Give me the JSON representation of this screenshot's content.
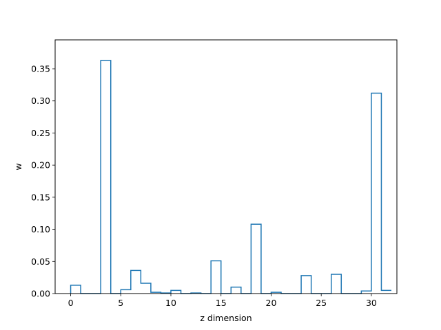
{
  "chart_data": {
    "type": "line",
    "style": "step-histogram",
    "xlabel": "z dimension",
    "ylabel": "w",
    "xlim": [
      -1.55,
      32.55
    ],
    "ylim": [
      0,
      0.395
    ],
    "xticks": [
      0,
      5,
      10,
      15,
      20,
      25,
      30
    ],
    "yticks": [
      0.0,
      0.05,
      0.1,
      0.15,
      0.2,
      0.25,
      0.3,
      0.35
    ],
    "ytick_labels": [
      "0.00",
      "0.05",
      "0.10",
      "0.15",
      "0.20",
      "0.25",
      "0.30",
      "0.35"
    ],
    "grid": false,
    "line_color": "#1f77b4",
    "series": [
      {
        "x": [
          0,
          1,
          2,
          3,
          4,
          5,
          6,
          7,
          8,
          9,
          10,
          11,
          12,
          13,
          14,
          15,
          16,
          17,
          18,
          19,
          20,
          21,
          22,
          23,
          24,
          25,
          26,
          27,
          28,
          29,
          30,
          31
        ],
        "values": [
          0.013,
          0.0,
          0.0,
          0.363,
          0.0,
          0.006,
          0.036,
          0.016,
          0.002,
          0.001,
          0.005,
          0.0,
          0.001,
          0.0,
          0.051,
          0.0,
          0.01,
          0.0,
          0.108,
          0.0,
          0.002,
          0.0,
          0.0,
          0.028,
          0.0,
          0.0,
          0.03,
          0.0,
          0.0,
          0.004,
          0.312,
          0.005
        ]
      }
    ]
  }
}
